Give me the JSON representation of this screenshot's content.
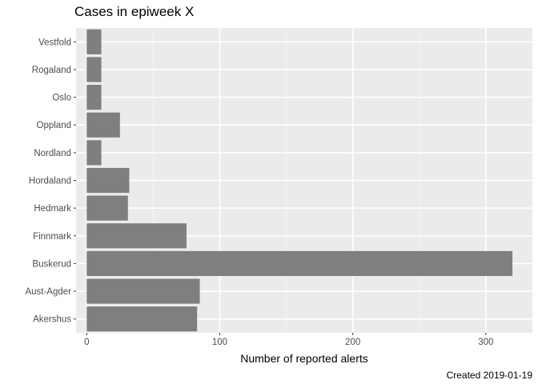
{
  "chart_data": {
    "type": "bar",
    "orientation": "horizontal",
    "title": "Cases in epiweek X",
    "xlabel": "Number of reported alerts",
    "ylabel": "",
    "caption": "Created 2019-01-19",
    "categories": [
      "Akershus",
      "Aust-Agder",
      "Buskerud",
      "Finnmark",
      "Hedmark",
      "Hordaland",
      "Nordland",
      "Oppland",
      "Oslo",
      "Rogaland",
      "Vestfold"
    ],
    "values": [
      83,
      85,
      320,
      75,
      31,
      32,
      11,
      25,
      11,
      11,
      11
    ],
    "xlim": [
      -8,
      335
    ],
    "xticks": [
      0,
      100,
      200,
      300
    ],
    "grid": true,
    "legend": "none",
    "colors": {
      "bar": "#7f7f7f",
      "panel": "#ebebeb",
      "grid_major": "#ffffff",
      "grid_minor": "#f5f5f5"
    }
  }
}
